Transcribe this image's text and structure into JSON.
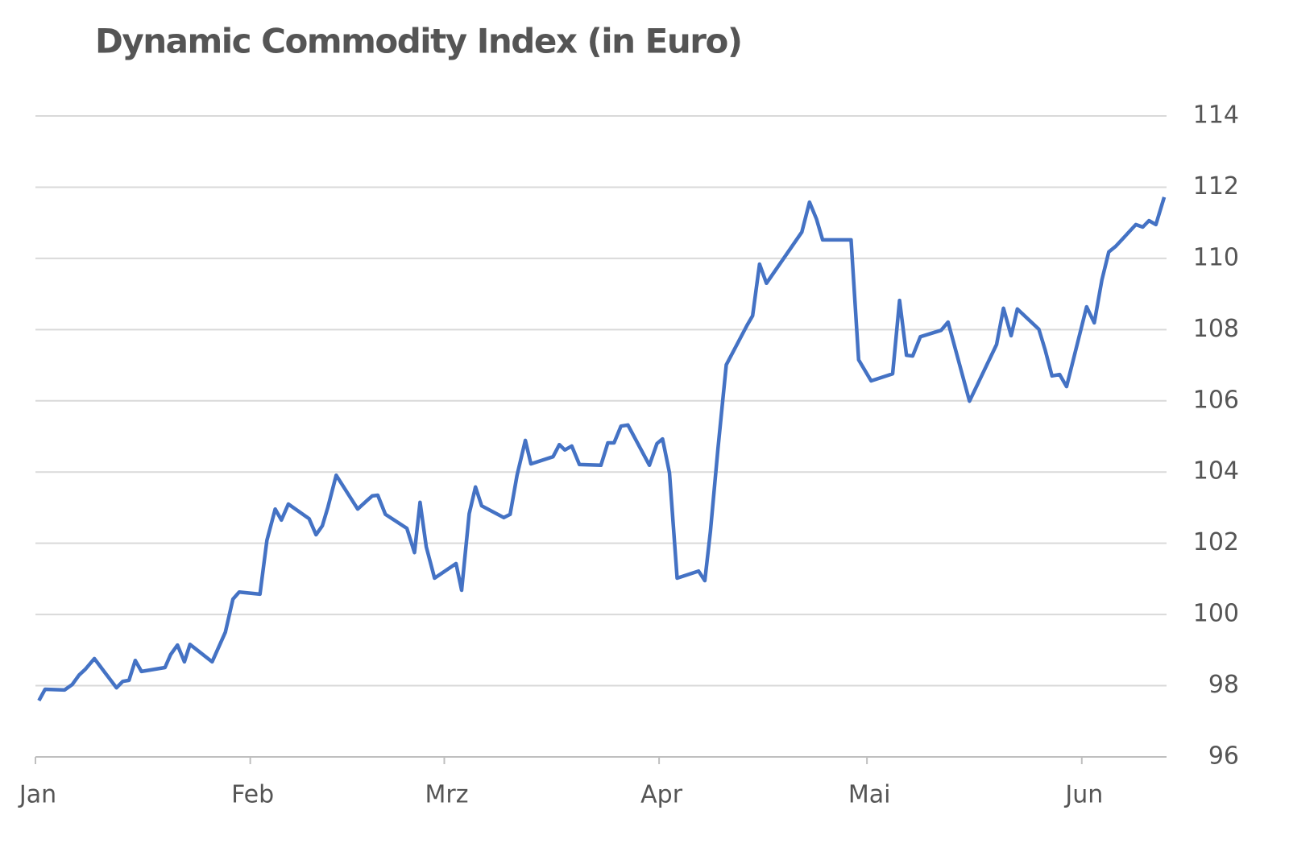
{
  "chart_data": {
    "type": "line",
    "title": "Dynamic Commodity Index (in Euro)",
    "x": [
      0.5,
      1.4,
      4.2,
      5.3,
      6.3,
      7.2,
      8.5,
      11.7,
      12.6,
      13.5,
      14.4,
      15.3,
      18.7,
      19.5,
      20.5,
      21.5,
      22.3,
      25.5,
      27.4,
      28.5,
      29.4,
      32.4,
      33.4,
      34.6,
      35.5,
      36.5,
      39.5,
      40.5,
      41.4,
      42.2,
      43.4,
      46.5,
      47.9,
      48.6,
      49.4,
      50.5,
      53.6,
      54.7,
      55.5,
      56.4,
      57.6,
      60.7,
      61.5,
      62.6,
      63.5,
      64.4,
      67.6,
      68.5,
      69.5,
      70.7,
      71.5,
      74.7,
      75.6,
      76.4,
      77.4,
      78.5,
      81.6,
      82.6,
      83.5,
      84.5,
      85.5,
      88.6,
      89.7,
      90.5,
      91.5,
      92.6,
      95.7,
      96.6,
      97.4,
      98.5,
      99.7,
      102.7,
      103.5,
      104.5,
      105.5,
      110.6,
      111.7,
      112.7,
      113.6,
      117.7,
      118.8,
      120.6,
      123.7,
      124.7,
      125.7,
      126.6,
      127.7,
      130.7,
      131.7,
      134.8,
      138.7,
      139.7,
      140.8,
      141.7,
      144.8,
      145.7,
      146.7,
      147.8,
      148.8,
      151.7,
      152.8,
      153.9,
      154.9,
      155.9,
      158.8,
      159.8,
      160.7,
      161.7,
      162.9
    ],
    "values": [
      97.58,
      97.9,
      97.88,
      98.03,
      98.3,
      98.46,
      98.76,
      97.94,
      98.12,
      98.15,
      98.71,
      98.4,
      98.51,
      98.87,
      99.14,
      98.67,
      99.16,
      98.67,
      99.5,
      100.43,
      100.63,
      100.57,
      102.08,
      102.96,
      102.65,
      103.1,
      102.69,
      102.24,
      102.49,
      103.01,
      103.91,
      102.96,
      103.21,
      103.33,
      103.35,
      102.81,
      102.42,
      101.74,
      103.15,
      101.9,
      101.02,
      101.43,
      100.68,
      102.83,
      103.58,
      103.05,
      102.72,
      102.81,
      103.91,
      104.89,
      104.23,
      104.43,
      104.77,
      104.62,
      104.73,
      104.21,
      104.19,
      104.82,
      104.82,
      105.29,
      105.32,
      104.19,
      104.8,
      104.93,
      103.98,
      101.02,
      101.22,
      100.95,
      102.33,
      104.66,
      107.01,
      108.12,
      108.39,
      109.84,
      109.3,
      110.74,
      111.58,
      111.11,
      110.52,
      110.52,
      107.15,
      106.56,
      106.76,
      108.82,
      107.28,
      107.26,
      107.8,
      107.98,
      108.21,
      105.99,
      107.58,
      108.6,
      107.83,
      108.58,
      108.01,
      107.44,
      106.7,
      106.74,
      106.4,
      108.64,
      108.19,
      109.39,
      110.18,
      110.34,
      110.95,
      110.88,
      111.06,
      110.95,
      111.72
    ],
    "color": "#4472c4",
    "xlim": [
      0,
      163
    ],
    "xticks": [
      {
        "value": 0,
        "label": "Jan"
      },
      {
        "value": 31,
        "label": "Feb"
      },
      {
        "value": 59,
        "label": "Mrz"
      },
      {
        "value": 90,
        "label": "Apr"
      },
      {
        "value": 120,
        "label": "Mai"
      },
      {
        "value": 151,
        "label": "Jun"
      }
    ],
    "ylim": [
      96,
      114
    ],
    "yticks": [
      96,
      98,
      100,
      102,
      104,
      106,
      108,
      110,
      112,
      114
    ],
    "grid": true
  }
}
